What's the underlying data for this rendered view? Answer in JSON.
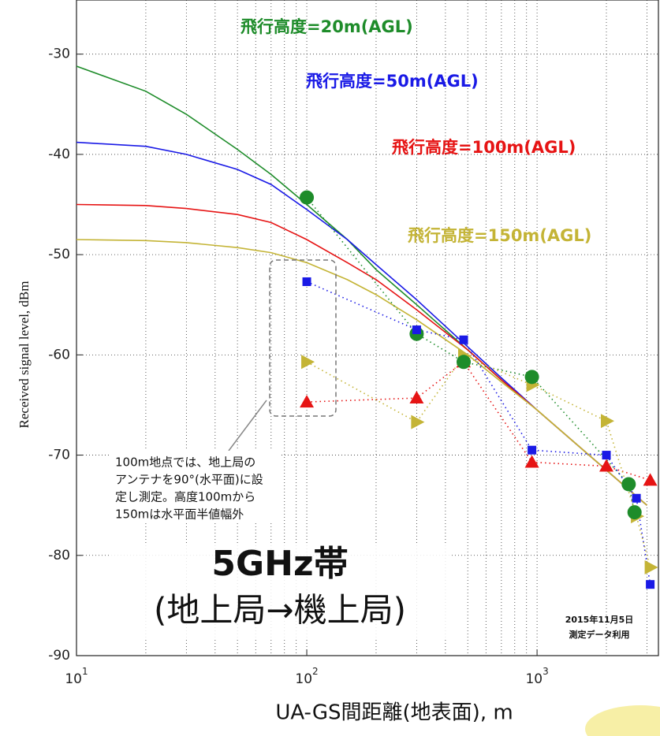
{
  "chart_data": {
    "type": "line",
    "xlabel": "UA-GS間距離(地表面), m",
    "ylabel": "Received signal level, dBm",
    "xscale": "log",
    "xlim": [
      10,
      3365
    ],
    "ylim": [
      -90,
      -24.6
    ],
    "xticks": [
      {
        "value": 10,
        "label": "10",
        "exponent": "1"
      },
      {
        "value": 100,
        "label": "10",
        "exponent": "2"
      },
      {
        "value": 1000,
        "label": "10",
        "exponent": "3"
      }
    ],
    "yticks": [
      -90,
      -80,
      -70,
      -60,
      -50,
      -40,
      -30
    ],
    "grid": true,
    "model_x": [
      10,
      20,
      30,
      50,
      70,
      100,
      150,
      200,
      300,
      500,
      700,
      1000,
      2000,
      3000
    ],
    "series": [
      {
        "name": "飛行高度=20m(AGL)",
        "color": "#1e8c2a",
        "marker": "circle",
        "model": [
          -31.2,
          -33.7,
          -36,
          -39.5,
          -42,
          -45,
          -48.5,
          -51.5,
          -55,
          -59.5,
          -62.5,
          -65.5,
          -71.5,
          -75
        ],
        "x": [
          100,
          300,
          480,
          950,
          2500,
          2650
        ],
        "values": [
          -44.3,
          -57.9,
          -60.7,
          -62.2,
          -72.9,
          -75.7
        ]
      },
      {
        "name": "飛行高度=50m(AGL)",
        "color": "#1a1ae6",
        "marker": "square",
        "model": [
          -38.8,
          -39.2,
          -40,
          -41.5,
          -43,
          -45.5,
          -48.5,
          -51,
          -54.5,
          -59.2,
          -62.3,
          -65.5,
          -71.5,
          -75
        ],
        "x": [
          100,
          300,
          480,
          950,
          2000,
          2700,
          3100
        ],
        "values": [
          -52.7,
          -57.5,
          -58.5,
          -69.5,
          -70,
          -74.3,
          -82.9
        ]
      },
      {
        "name": "飛行高度=100m(AGL)",
        "color": "#e61414",
        "marker": "triangle-up",
        "model": [
          -45,
          -45.1,
          -45.4,
          -46,
          -46.8,
          -48.5,
          -50.8,
          -52.5,
          -55.5,
          -59.5,
          -62.5,
          -65.5,
          -71.5,
          -75
        ],
        "x": [
          100,
          300,
          480,
          950,
          2000,
          3100
        ],
        "values": [
          -64.7,
          -64.3,
          -60.7,
          -70.7,
          -71.1,
          -72.5
        ]
      },
      {
        "name": "飛行高度=150m(AGL)",
        "color": "#c4b436",
        "marker": "triangle-right",
        "model": [
          -48.5,
          -48.6,
          -48.8,
          -49.3,
          -49.8,
          -50.8,
          -52.5,
          -54,
          -56.5,
          -60,
          -62.7,
          -65.5,
          -71.5,
          -75
        ],
        "x": [
          100,
          300,
          480,
          950,
          2000,
          2700,
          3100
        ],
        "values": [
          -60.7,
          -66.7,
          -60.1,
          -63,
          -66.6,
          -76.1,
          -81.2
        ]
      }
    ],
    "annotations": {
      "note": [
        "100m地点では、地上局の",
        "アンテナを90°(水平面)に設",
        "定し測定。高度100mから",
        "150mは水平面半値幅外"
      ],
      "band": "5GHz帯",
      "direction": "(地上局→機上局)",
      "source": [
        "2015年11月5日",
        "測定データ利用"
      ]
    }
  }
}
